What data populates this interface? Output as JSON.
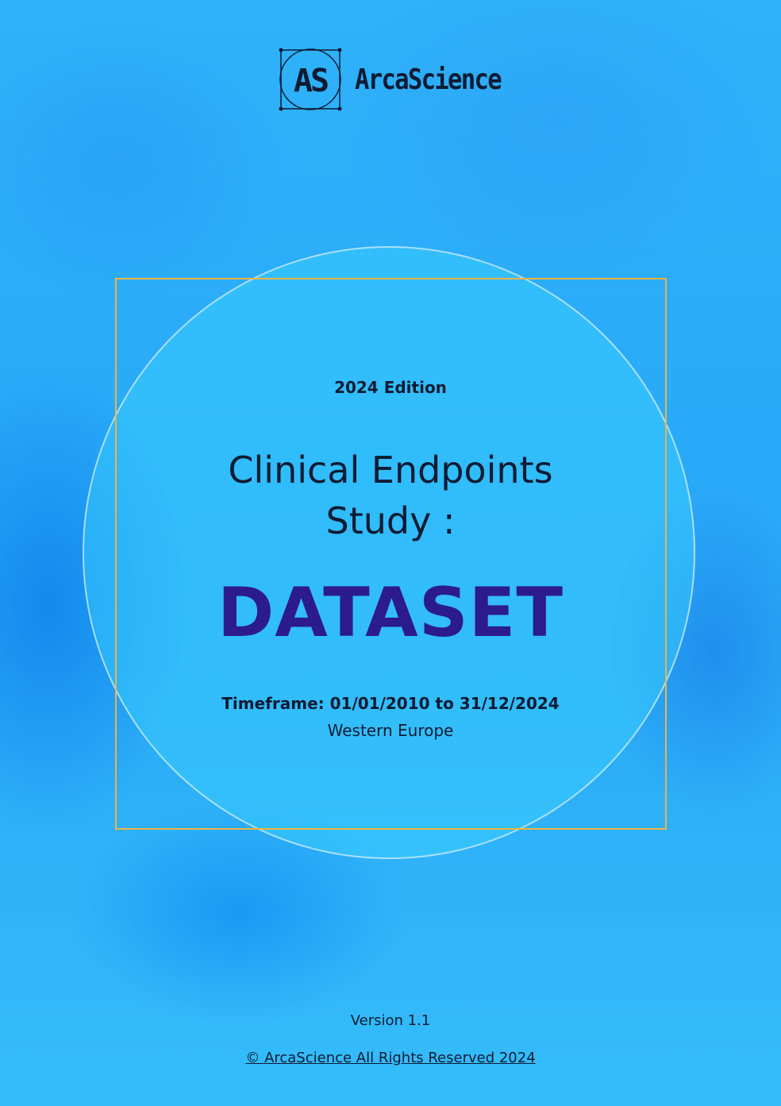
{
  "logo": {
    "monogram": "AS",
    "name": "ArcaScience"
  },
  "cover": {
    "edition": "2024 Edition",
    "title_line1": "Clinical Endpoints",
    "title_line2": "Study :",
    "subtitle": "DATASET",
    "timeframe": "Timeframe: 01/01/2010 to 31/12/2024",
    "region": "Western Europe"
  },
  "footer": {
    "version": "Version 1.1",
    "copyright": "© ArcaScience All Rights Reserved 2024"
  },
  "colors": {
    "frame": "#f0b246",
    "dataset": "#2c1a8f",
    "text": "#0d1b33"
  }
}
